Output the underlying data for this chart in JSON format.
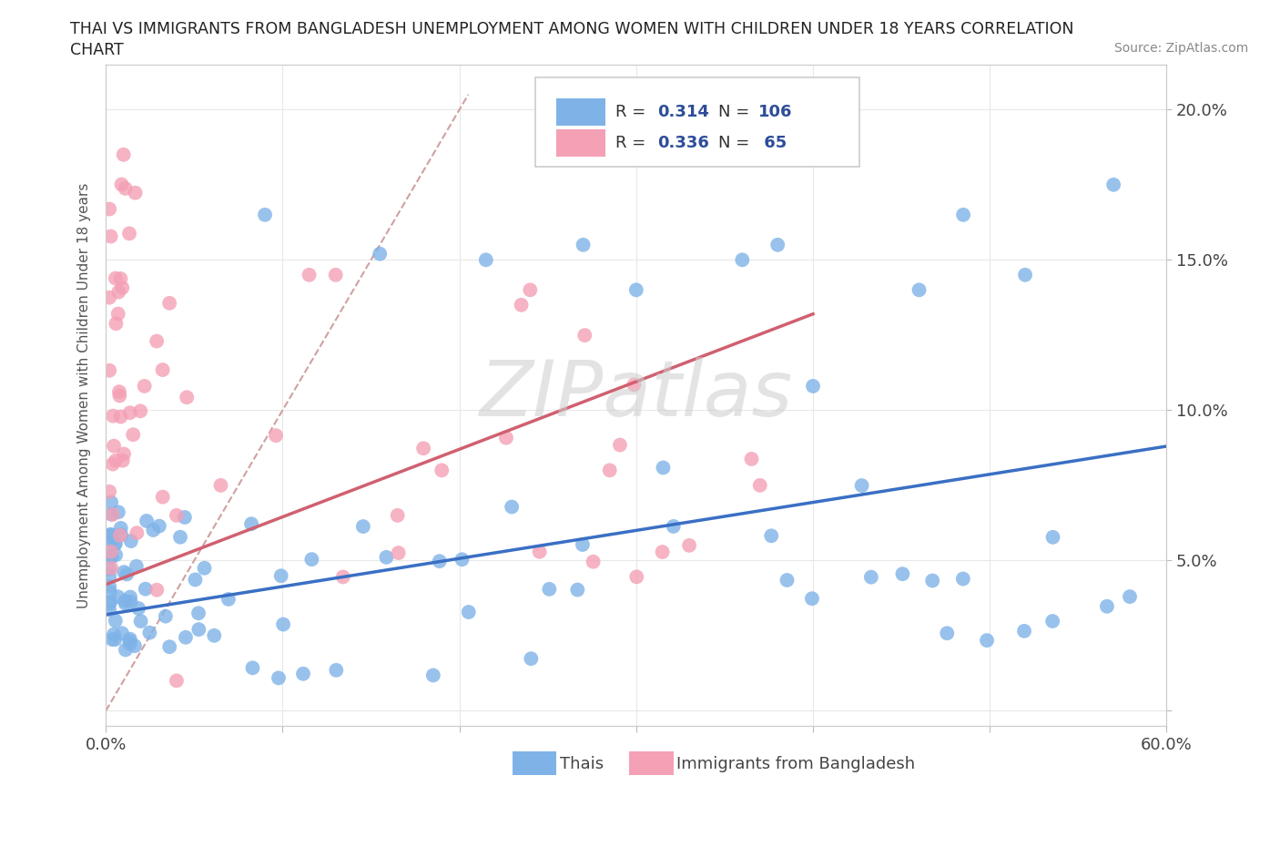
{
  "title_line1": "THAI VS IMMIGRANTS FROM BANGLADESH UNEMPLOYMENT AMONG WOMEN WITH CHILDREN UNDER 18 YEARS CORRELATION",
  "title_line2": "CHART",
  "source": "Source: ZipAtlas.com",
  "watermark": "ZIPatlas",
  "ylabel": "Unemployment Among Women with Children Under 18 years",
  "xlim": [
    0.0,
    0.6
  ],
  "ylim": [
    -0.005,
    0.215
  ],
  "thai_R": 0.314,
  "thai_N": 106,
  "bangla_R": 0.336,
  "bangla_N": 65,
  "thai_color": "#7fb3e8",
  "bangla_color": "#f4a0b5",
  "thai_line_color": "#3a6fc4",
  "bangla_line_color": "#d06070",
  "ref_line_color": "#d0a0a0",
  "legend_text_color": "#2e4d99",
  "thai_line_x0": 0.0,
  "thai_line_y0": 0.032,
  "thai_line_x1": 0.6,
  "thai_line_y1": 0.088,
  "bangla_line_x0": 0.0,
  "bangla_line_y0": 0.042,
  "bangla_line_x1": 0.4,
  "bangla_line_y1": 0.132,
  "ref_line_x0": 0.0,
  "ref_line_y0": 0.0,
  "ref_line_x1": 0.205,
  "ref_line_y1": 0.205
}
